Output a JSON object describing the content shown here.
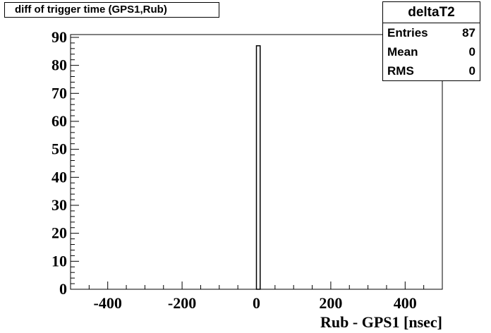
{
  "chart_data": {
    "type": "bar",
    "title": "diff of trigger time (GPS1,Rub)",
    "xlabel": "Rub - GPS1 [nsec]",
    "ylabel": "",
    "xlim": [
      -500,
      500
    ],
    "ylim": [
      0,
      91
    ],
    "x_ticks": [
      -400,
      -200,
      0,
      200,
      400
    ],
    "y_ticks": [
      0,
      10,
      20,
      30,
      40,
      50,
      60,
      70,
      80,
      90
    ],
    "bins": [
      {
        "x0": 0,
        "x1": 10,
        "value": 87
      }
    ],
    "stats": {
      "name": "deltaT2",
      "rows": [
        {
          "label": "Entries",
          "value": "87"
        },
        {
          "label": "Mean",
          "value": "0"
        },
        {
          "label": "RMS",
          "value": "0"
        }
      ],
      "placement": "top-right"
    },
    "grid": false
  }
}
